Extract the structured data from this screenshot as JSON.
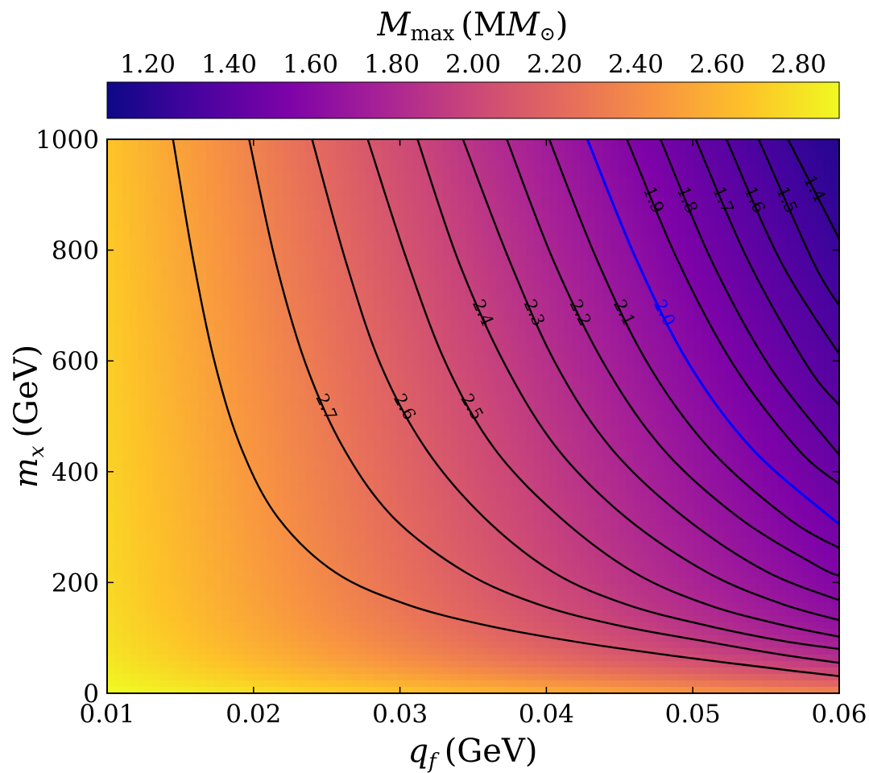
{
  "chart_data": {
    "type": "heatmap",
    "plot_kind": "filled contour",
    "colorbar": {
      "title_main": "M",
      "title_sub": "max",
      "title_unit": "(M",
      "title_unit_close": ")",
      "colormap": "plasma",
      "range": [
        1.1,
        2.9
      ],
      "ticks": [
        "1.20",
        "1.40",
        "1.60",
        "1.80",
        "2.00",
        "2.20",
        "2.40",
        "2.60",
        "2.80"
      ],
      "tick_values": [
        1.2,
        1.4,
        1.6,
        1.8,
        2.0,
        2.2,
        2.4,
        2.6,
        2.8
      ]
    },
    "x_axis": {
      "label_var": "q",
      "label_sub": "f",
      "label_unit": "(GeV)",
      "range": [
        0.01,
        0.06
      ],
      "ticks": [
        "0.01",
        "0.02",
        "0.03",
        "0.04",
        "0.05",
        "0.06"
      ],
      "tick_values": [
        0.01,
        0.02,
        0.03,
        0.04,
        0.05,
        0.06
      ]
    },
    "y_axis": {
      "label_var": "m",
      "label_sub": "x",
      "label_unit": "(GeV)",
      "range": [
        0,
        1000
      ],
      "ticks": [
        "0",
        "200",
        "400",
        "600",
        "800",
        "1000"
      ],
      "tick_values": [
        0,
        200,
        400,
        600,
        800,
        1000
      ]
    },
    "contour_levels": [
      {
        "level": 2.8,
        "label": "",
        "color": "#000000",
        "points": [
          [
            0.0145,
            1000
          ],
          [
            0.0159,
            780
          ],
          [
            0.0174,
            592
          ],
          [
            0.0192,
            440
          ],
          [
            0.0217,
            316
          ],
          [
            0.0256,
            218
          ],
          [
            0.0305,
            160
          ],
          [
            0.036,
            122
          ],
          [
            0.042,
            93
          ],
          [
            0.048,
            70
          ],
          [
            0.053,
            53
          ],
          [
            0.057,
            40
          ],
          [
            0.06,
            31
          ]
        ]
      },
      {
        "level": 2.7,
        "label": "2.7",
        "color": "#000000",
        "points": [
          [
            0.0197,
            1000
          ],
          [
            0.0215,
            780
          ],
          [
            0.0236,
            592
          ],
          [
            0.0262,
            440
          ],
          [
            0.0296,
            316
          ],
          [
            0.0345,
            218
          ],
          [
            0.0395,
            160
          ],
          [
            0.045,
            122
          ],
          [
            0.051,
            93
          ],
          [
            0.056,
            70
          ],
          [
            0.06,
            55
          ]
        ]
      },
      {
        "level": 2.6,
        "label": "2.6",
        "color": "#000000",
        "points": [
          [
            0.024,
            1000
          ],
          [
            0.0263,
            780
          ],
          [
            0.0287,
            592
          ],
          [
            0.0318,
            440
          ],
          [
            0.0358,
            316
          ],
          [
            0.0405,
            218
          ],
          [
            0.0455,
            160
          ],
          [
            0.051,
            122
          ],
          [
            0.056,
            95
          ],
          [
            0.06,
            80
          ]
        ]
      },
      {
        "level": 2.5,
        "label": "2.5",
        "color": "#000000",
        "points": [
          [
            0.0278,
            1000
          ],
          [
            0.0305,
            780
          ],
          [
            0.0332,
            592
          ],
          [
            0.0365,
            440
          ],
          [
            0.041,
            316
          ],
          [
            0.046,
            218
          ],
          [
            0.051,
            160
          ],
          [
            0.056,
            124
          ],
          [
            0.06,
            102
          ]
        ]
      },
      {
        "level": 2.4,
        "label": "2.4",
        "color": "#000000",
        "points": [
          [
            0.0312,
            1000
          ],
          [
            0.034,
            780
          ],
          [
            0.0372,
            592
          ],
          [
            0.0408,
            440
          ],
          [
            0.0455,
            316
          ],
          [
            0.051,
            218
          ],
          [
            0.056,
            162
          ],
          [
            0.06,
            132
          ]
        ]
      },
      {
        "level": 2.3,
        "label": "2.3",
        "color": "#000000",
        "points": [
          [
            0.0343,
            1000
          ],
          [
            0.0375,
            780
          ],
          [
            0.0407,
            592
          ],
          [
            0.0445,
            440
          ],
          [
            0.0495,
            316
          ],
          [
            0.055,
            220
          ],
          [
            0.06,
            168
          ]
        ]
      },
      {
        "level": 2.2,
        "label": "2.2",
        "color": "#000000",
        "points": [
          [
            0.0373,
            1000
          ],
          [
            0.0405,
            780
          ],
          [
            0.044,
            592
          ],
          [
            0.048,
            440
          ],
          [
            0.0532,
            316
          ],
          [
            0.0585,
            230
          ],
          [
            0.06,
            212
          ]
        ]
      },
      {
        "level": 2.1,
        "label": "2.1",
        "color": "#000000",
        "points": [
          [
            0.0402,
            1000
          ],
          [
            0.0435,
            780
          ],
          [
            0.047,
            592
          ],
          [
            0.0512,
            440
          ],
          [
            0.0565,
            316
          ],
          [
            0.06,
            262
          ]
        ]
      },
      {
        "level": 2.0,
        "label": "2.0",
        "color": "#0000ff",
        "points": [
          [
            0.0428,
            1000
          ],
          [
            0.0462,
            780
          ],
          [
            0.0498,
            592
          ],
          [
            0.0541,
            440
          ],
          [
            0.0595,
            316
          ],
          [
            0.06,
            310
          ]
        ]
      },
      {
        "level": 1.9,
        "label": "1.9",
        "color": "#000000",
        "points": [
          [
            0.0455,
            1000
          ],
          [
            0.049,
            780
          ],
          [
            0.0528,
            592
          ],
          [
            0.0572,
            440
          ],
          [
            0.06,
            378
          ]
        ]
      },
      {
        "level": 1.8,
        "label": "1.8",
        "color": "#000000",
        "points": [
          [
            0.0478,
            1000
          ],
          [
            0.0513,
            780
          ],
          [
            0.0552,
            592
          ],
          [
            0.0597,
            440
          ],
          [
            0.06,
            436
          ]
        ]
      },
      {
        "level": 1.7,
        "label": "1.7",
        "color": "#000000",
        "points": [
          [
            0.0502,
            1000
          ],
          [
            0.0538,
            780
          ],
          [
            0.0578,
            592
          ],
          [
            0.06,
            520
          ]
        ]
      },
      {
        "level": 1.6,
        "label": "1.6",
        "color": "#000000",
        "points": [
          [
            0.0523,
            1000
          ],
          [
            0.056,
            780
          ],
          [
            0.06,
            612
          ]
        ]
      },
      {
        "level": 1.5,
        "label": "1.5",
        "color": "#000000",
        "points": [
          [
            0.0545,
            1000
          ],
          [
            0.0582,
            780
          ],
          [
            0.06,
            700
          ]
        ]
      },
      {
        "level": 1.4,
        "label": "1.4",
        "color": "#000000",
        "points": [
          [
            0.0565,
            1000
          ],
          [
            0.06,
            820
          ]
        ]
      }
    ]
  }
}
